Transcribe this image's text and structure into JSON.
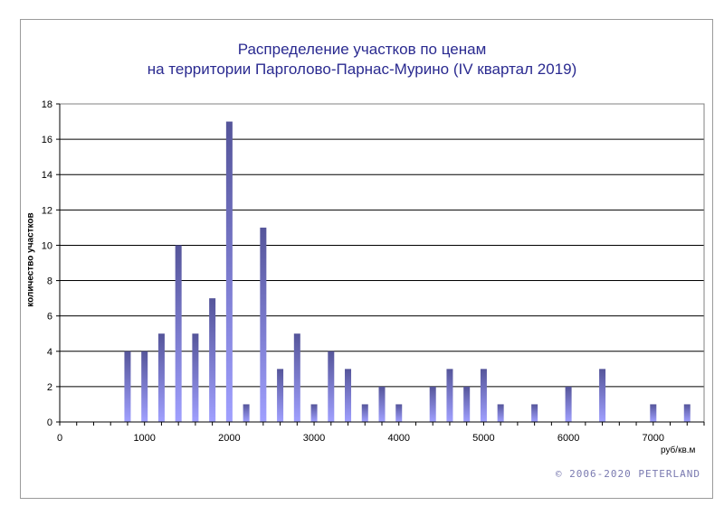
{
  "chart_data": {
    "type": "bar",
    "title_line1": "Распределение  участков по ценам",
    "title_line2": "на территории Парголово-Парнас-Мурино (IV квартал 2019)",
    "xlabel": "руб/кв.м",
    "ylabel": "количество участков",
    "ylim": [
      0,
      18
    ],
    "xlim": [
      0,
      7600
    ],
    "y_ticks": [
      0,
      2,
      4,
      6,
      8,
      10,
      12,
      14,
      16,
      18
    ],
    "x_ticks": [
      0,
      1000,
      2000,
      3000,
      4000,
      5000,
      6000,
      7000
    ],
    "grid": true,
    "x": [
      800,
      1000,
      1200,
      1400,
      1600,
      1800,
      2000,
      2200,
      2400,
      2600,
      2800,
      3000,
      3200,
      3400,
      3600,
      3800,
      4000,
      4400,
      4600,
      4800,
      5000,
      5200,
      5600,
      6000,
      6400,
      7000,
      7400
    ],
    "values": [
      4,
      4,
      5,
      10,
      5,
      7,
      17,
      1,
      11,
      3,
      5,
      1,
      4,
      3,
      1,
      2,
      1,
      2,
      3,
      2,
      3,
      1,
      1,
      2,
      3,
      1,
      1
    ],
    "bar_gradient": [
      "#55559a",
      "#a0a0ff"
    ]
  },
  "footer": {
    "copyright": "© 2006-2020  PETERLAND"
  }
}
